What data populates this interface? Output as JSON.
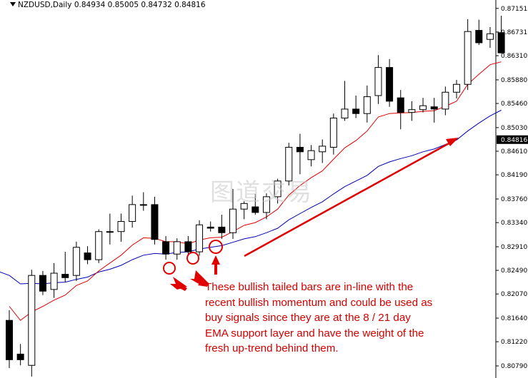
{
  "header": {
    "symbol": "NZDUSD,Daily",
    "ohlc": "0.84934 0.85005 0.84732 0.84816"
  },
  "watermark": "图道交易",
  "annotation": {
    "lines": [
      "These bullish tailed bars are in-line with the",
      "recent bullish momentum and could be used as",
      "buy signals since they are at the 8 / 21 day",
      "EMA support layer and have the weight of the",
      "fresh up-trend behind them."
    ]
  },
  "colors": {
    "ema_fast": "#e00000",
    "ema_slow": "#0000b4",
    "annotation": "#d40000"
  },
  "chart_data": {
    "type": "candlestick",
    "ylim": [
      0.806,
      0.8725
    ],
    "y_ticks": [
      "0.87151",
      "0.86731",
      "0.86310",
      "0.85880",
      "0.85460",
      "0.85030",
      "0.84610",
      "0.84190",
      "0.83760",
      "0.83340",
      "0.82910",
      "0.82490",
      "0.82070",
      "0.81640",
      "0.81220",
      "0.80790"
    ],
    "current_price": "0.84816",
    "candles": [
      {
        "o": 0.816,
        "h": 0.8178,
        "l": 0.8075,
        "c": 0.809
      },
      {
        "o": 0.81,
        "h": 0.8118,
        "l": 0.808,
        "c": 0.809
      },
      {
        "o": 0.808,
        "h": 0.825,
        "l": 0.806,
        "c": 0.824
      },
      {
        "o": 0.824,
        "h": 0.8248,
        "l": 0.8205,
        "c": 0.8212
      },
      {
        "o": 0.8215,
        "h": 0.8262,
        "l": 0.82,
        "c": 0.8244
      },
      {
        "o": 0.8242,
        "h": 0.8282,
        "l": 0.8228,
        "c": 0.8236
      },
      {
        "o": 0.824,
        "h": 0.83,
        "l": 0.823,
        "c": 0.829
      },
      {
        "o": 0.828,
        "h": 0.8292,
        "l": 0.826,
        "c": 0.8268
      },
      {
        "o": 0.8268,
        "h": 0.8322,
        "l": 0.8262,
        "c": 0.8318
      },
      {
        "o": 0.8318,
        "h": 0.835,
        "l": 0.8295,
        "c": 0.8318
      },
      {
        "o": 0.8318,
        "h": 0.835,
        "l": 0.83,
        "c": 0.8336
      },
      {
        "o": 0.8336,
        "h": 0.8382,
        "l": 0.8325,
        "c": 0.8366
      },
      {
        "o": 0.8366,
        "h": 0.8388,
        "l": 0.8355,
        "c": 0.8366
      },
      {
        "o": 0.8366,
        "h": 0.838,
        "l": 0.8295,
        "c": 0.8304
      },
      {
        "o": 0.83,
        "h": 0.831,
        "l": 0.8268,
        "c": 0.8278
      },
      {
        "o": 0.8278,
        "h": 0.8306,
        "l": 0.8268,
        "c": 0.83
      },
      {
        "o": 0.83,
        "h": 0.831,
        "l": 0.8275,
        "c": 0.8282
      },
      {
        "o": 0.8282,
        "h": 0.8338,
        "l": 0.8275,
        "c": 0.833
      },
      {
        "o": 0.8326,
        "h": 0.8336,
        "l": 0.8318,
        "c": 0.8324
      },
      {
        "o": 0.8326,
        "h": 0.8348,
        "l": 0.8305,
        "c": 0.8316
      },
      {
        "o": 0.8316,
        "h": 0.8394,
        "l": 0.8305,
        "c": 0.8358
      },
      {
        "o": 0.8358,
        "h": 0.8372,
        "l": 0.834,
        "c": 0.8368
      },
      {
        "o": 0.8362,
        "h": 0.8385,
        "l": 0.8348,
        "c": 0.8352
      },
      {
        "o": 0.8352,
        "h": 0.8386,
        "l": 0.834,
        "c": 0.838
      },
      {
        "o": 0.838,
        "h": 0.8412,
        "l": 0.8368,
        "c": 0.8408
      },
      {
        "o": 0.8408,
        "h": 0.8476,
        "l": 0.84,
        "c": 0.8468
      },
      {
        "o": 0.8468,
        "h": 0.8492,
        "l": 0.842,
        "c": 0.846
      },
      {
        "o": 0.8446,
        "h": 0.8472,
        "l": 0.8434,
        "c": 0.8462
      },
      {
        "o": 0.846,
        "h": 0.8482,
        "l": 0.844,
        "c": 0.847
      },
      {
        "o": 0.8468,
        "h": 0.8528,
        "l": 0.8455,
        "c": 0.852
      },
      {
        "o": 0.852,
        "h": 0.8586,
        "l": 0.8515,
        "c": 0.8536
      },
      {
        "o": 0.8536,
        "h": 0.856,
        "l": 0.852,
        "c": 0.8528
      },
      {
        "o": 0.8528,
        "h": 0.8578,
        "l": 0.8512,
        "c": 0.8558
      },
      {
        "o": 0.856,
        "h": 0.8632,
        "l": 0.8545,
        "c": 0.861
      },
      {
        "o": 0.861,
        "h": 0.8625,
        "l": 0.854,
        "c": 0.855
      },
      {
        "o": 0.8556,
        "h": 0.857,
        "l": 0.85,
        "c": 0.853
      },
      {
        "o": 0.853,
        "h": 0.855,
        "l": 0.8515,
        "c": 0.8535
      },
      {
        "o": 0.8535,
        "h": 0.8556,
        "l": 0.853,
        "c": 0.8542
      },
      {
        "o": 0.854,
        "h": 0.8556,
        "l": 0.8512,
        "c": 0.8536
      },
      {
        "o": 0.8536,
        "h": 0.8576,
        "l": 0.8525,
        "c": 0.8566
      },
      {
        "o": 0.8566,
        "h": 0.8588,
        "l": 0.8555,
        "c": 0.858
      },
      {
        "o": 0.858,
        "h": 0.8696,
        "l": 0.857,
        "c": 0.8674
      },
      {
        "o": 0.8676,
        "h": 0.8695,
        "l": 0.865,
        "c": 0.8654
      },
      {
        "o": 0.866,
        "h": 0.8682,
        "l": 0.8645,
        "c": 0.867
      },
      {
        "o": 0.8672,
        "h": 0.8702,
        "l": 0.8635,
        "c": 0.8636
      }
    ],
    "ema8": [
      0.8185,
      0.816,
      0.8175,
      0.8185,
      0.8196,
      0.8205,
      0.8222,
      0.823,
      0.8248,
      0.8262,
      0.8276,
      0.8294,
      0.8307,
      0.8306,
      0.83,
      0.83,
      0.8296,
      0.8303,
      0.8307,
      0.8308,
      0.8318,
      0.8329,
      0.8334,
      0.8344,
      0.8358,
      0.8383,
      0.84,
      0.8414,
      0.8426,
      0.8447,
      0.8467,
      0.848,
      0.8497,
      0.8522,
      0.8528,
      0.8529,
      0.853,
      0.8532,
      0.8533,
      0.8541,
      0.855,
      0.858,
      0.8598,
      0.8615,
      0.862
    ],
    "ema21": [
      0.824,
      0.8225,
      0.8226,
      0.8225,
      0.8227,
      0.8228,
      0.8233,
      0.8237,
      0.8246,
      0.8251,
      0.8258,
      0.8268,
      0.8276,
      0.8279,
      0.8278,
      0.8281,
      0.8282,
      0.8287,
      0.829,
      0.8293,
      0.8299,
      0.8305,
      0.8309,
      0.8316,
      0.8324,
      0.8339,
      0.835,
      0.8361,
      0.8371,
      0.8385,
      0.8398,
      0.8408,
      0.8418,
      0.8434,
      0.8442,
      0.8448,
      0.8453,
      0.846,
      0.8465,
      0.8473,
      0.8481,
      0.8497,
      0.8511,
      0.8524,
      0.8534
    ]
  }
}
